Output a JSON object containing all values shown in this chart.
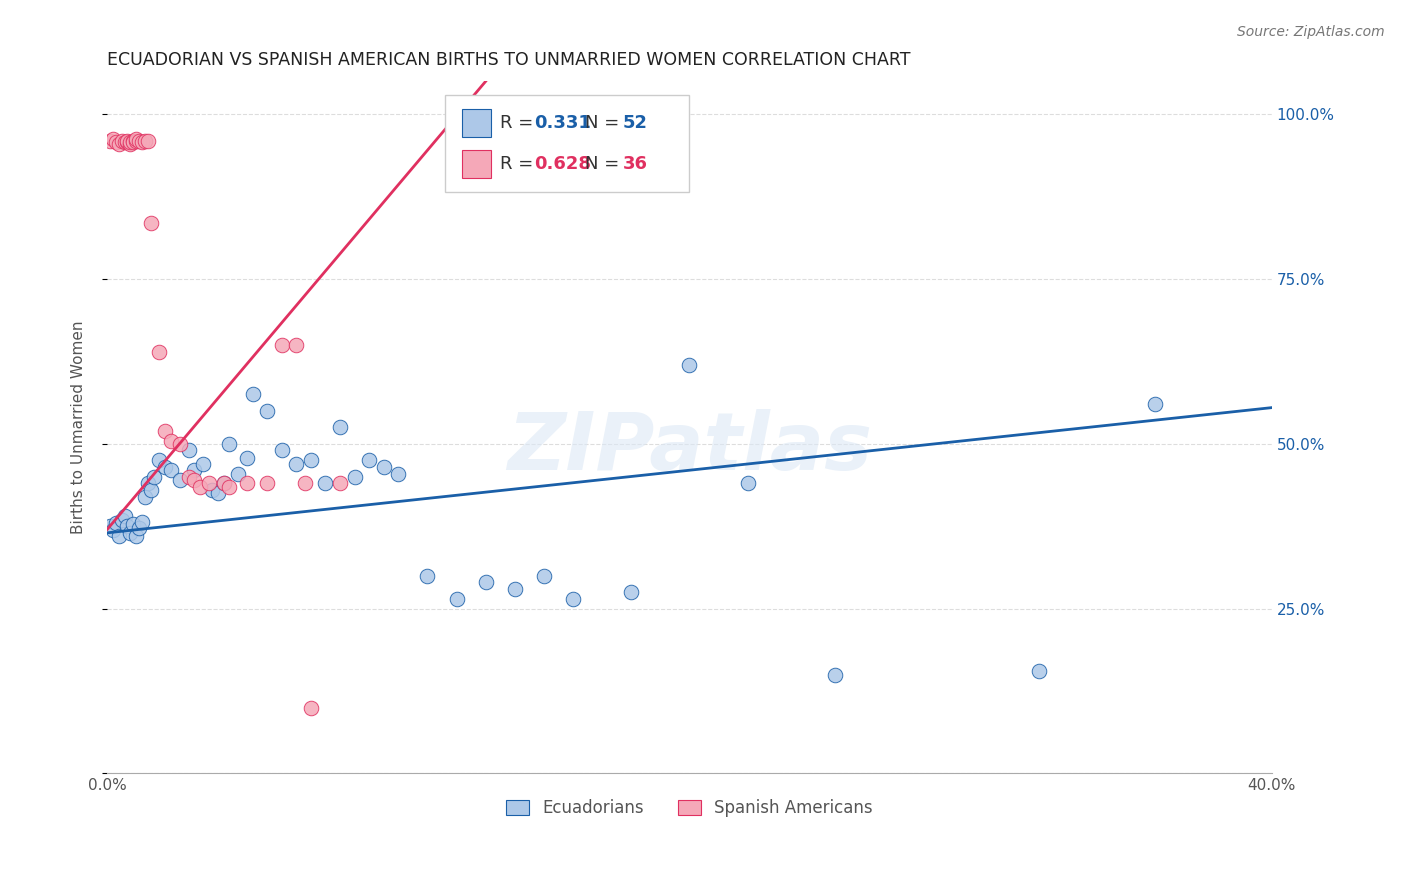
{
  "title": "ECUADORIAN VS SPANISH AMERICAN BIRTHS TO UNMARRIED WOMEN CORRELATION CHART",
  "source": "Source: ZipAtlas.com",
  "ylabel": "Births to Unmarried Women",
  "legend_blue_r": "0.331",
  "legend_blue_n": "52",
  "legend_pink_r": "0.628",
  "legend_pink_n": "36",
  "blue_scatter_x": [
    0.001,
    0.002,
    0.003,
    0.004,
    0.005,
    0.006,
    0.007,
    0.008,
    0.009,
    0.01,
    0.011,
    0.012,
    0.013,
    0.014,
    0.015,
    0.016,
    0.018,
    0.02,
    0.022,
    0.025,
    0.028,
    0.03,
    0.033,
    0.036,
    0.038,
    0.04,
    0.042,
    0.045,
    0.048,
    0.05,
    0.055,
    0.06,
    0.065,
    0.07,
    0.075,
    0.08,
    0.085,
    0.09,
    0.095,
    0.1,
    0.11,
    0.12,
    0.13,
    0.14,
    0.15,
    0.16,
    0.18,
    0.2,
    0.22,
    0.25,
    0.32,
    0.36
  ],
  "blue_scatter_y": [
    0.375,
    0.37,
    0.38,
    0.36,
    0.385,
    0.39,
    0.375,
    0.365,
    0.378,
    0.36,
    0.372,
    0.382,
    0.42,
    0.44,
    0.43,
    0.45,
    0.475,
    0.465,
    0.46,
    0.445,
    0.49,
    0.46,
    0.47,
    0.43,
    0.425,
    0.44,
    0.5,
    0.455,
    0.478,
    0.575,
    0.55,
    0.49,
    0.47,
    0.475,
    0.44,
    0.525,
    0.45,
    0.475,
    0.465,
    0.455,
    0.3,
    0.265,
    0.29,
    0.28,
    0.3,
    0.265,
    0.275,
    0.62,
    0.44,
    0.15,
    0.155,
    0.56
  ],
  "pink_scatter_x": [
    0.001,
    0.002,
    0.003,
    0.004,
    0.005,
    0.006,
    0.007,
    0.007,
    0.008,
    0.008,
    0.009,
    0.009,
    0.01,
    0.01,
    0.011,
    0.012,
    0.013,
    0.014,
    0.015,
    0.018,
    0.02,
    0.022,
    0.025,
    0.028,
    0.03,
    0.032,
    0.035,
    0.04,
    0.042,
    0.048,
    0.055,
    0.06,
    0.065,
    0.068,
    0.07,
    0.08
  ],
  "pink_scatter_y": [
    0.96,
    0.962,
    0.958,
    0.955,
    0.96,
    0.958,
    0.958,
    0.96,
    0.955,
    0.958,
    0.96,
    0.958,
    0.96,
    0.962,
    0.96,
    0.958,
    0.96,
    0.96,
    0.835,
    0.64,
    0.52,
    0.505,
    0.5,
    0.45,
    0.445,
    0.435,
    0.44,
    0.44,
    0.435,
    0.44,
    0.44,
    0.65,
    0.65,
    0.44,
    0.1,
    0.44
  ],
  "blue_line_x": [
    0.0,
    0.4
  ],
  "blue_line_y": [
    0.365,
    0.555
  ],
  "pink_line_x": [
    0.0,
    0.13
  ],
  "pink_line_y": [
    0.37,
    1.05
  ],
  "blue_color": "#adc8e8",
  "pink_color": "#f5a8b8",
  "blue_line_color": "#1a5fa8",
  "pink_line_color": "#e03060",
  "xmin": 0.0,
  "xmax": 0.4,
  "ymin": 0.0,
  "ymax": 1.05,
  "yticks": [
    0.0,
    0.25,
    0.5,
    0.75,
    1.0
  ],
  "ytick_labels_right": [
    "",
    "25.0%",
    "50.0%",
    "75.0%",
    "100.0%"
  ],
  "xticks": [
    0.0,
    0.05,
    0.1,
    0.15,
    0.2,
    0.25,
    0.3,
    0.35,
    0.4
  ],
  "watermark_text": "ZIPatlas",
  "background_color": "#ffffff",
  "grid_color": "#dddddd"
}
